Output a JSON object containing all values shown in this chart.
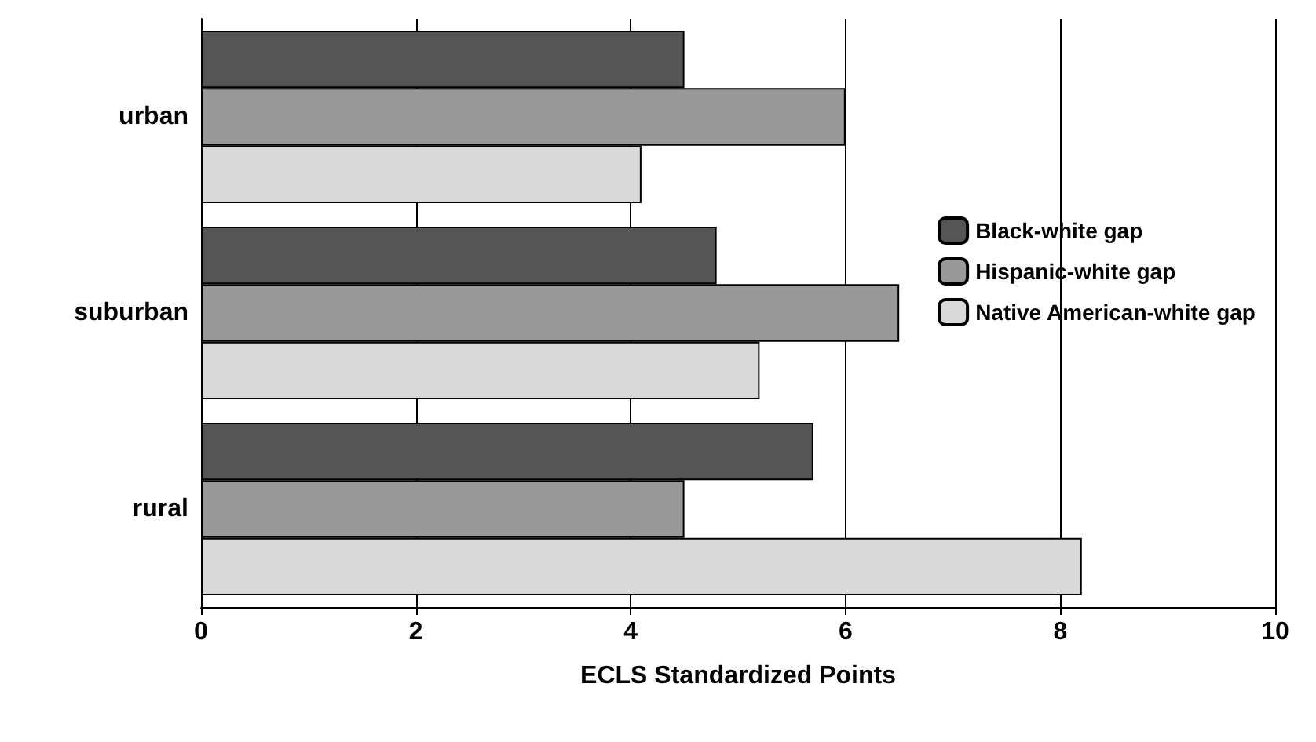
{
  "chart_data": {
    "type": "bar",
    "orientation": "horizontal",
    "xlabel": "ECLS Standardized Points",
    "categories": [
      "urban",
      "suburban",
      "rural"
    ],
    "series": [
      {
        "name": "Black-white gap",
        "color": "#555555",
        "values": [
          4.5,
          4.8,
          5.7
        ]
      },
      {
        "name": "Hispanic-white gap",
        "color": "#999999",
        "values": [
          6.0,
          6.5,
          4.5
        ]
      },
      {
        "name": "Native American-white gap",
        "color": "#d9d9d9",
        "values": [
          4.1,
          5.2,
          8.2
        ]
      }
    ],
    "xlim": [
      0,
      10
    ],
    "xticks": [
      0,
      2,
      4,
      6,
      8,
      10
    ],
    "grid": "x",
    "legend": "right"
  }
}
